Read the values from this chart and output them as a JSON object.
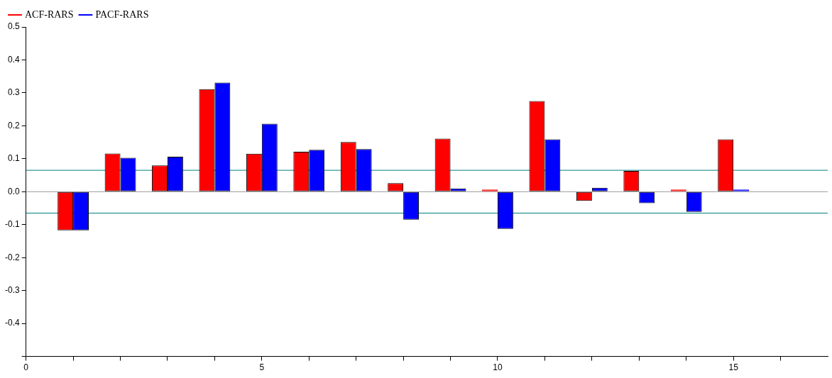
{
  "chart_data": {
    "type": "bar",
    "x": [
      1,
      2,
      3,
      4,
      5,
      6,
      7,
      8,
      9,
      10,
      11,
      12,
      13,
      14,
      15
    ],
    "series": [
      {
        "name": "ACF-RARS",
        "color": "#ff0000",
        "values": [
          -0.117,
          0.116,
          0.08,
          0.311,
          0.115,
          0.121,
          0.151,
          0.026,
          0.161,
          0.001,
          0.275,
          -0.028,
          0.063,
          0.005,
          0.159
        ]
      },
      {
        "name": "PACF-RARS",
        "color": "#0000ff",
        "values": [
          -0.117,
          0.103,
          0.106,
          0.331,
          0.206,
          0.127,
          0.129,
          -0.085,
          0.01,
          -0.113,
          0.159,
          0.012,
          -0.035,
          -0.061,
          0.002
        ]
      }
    ],
    "xlim": [
      0,
      17
    ],
    "xticks": [
      0,
      {
        "value": 1,
        "label": null
      },
      {
        "value": 2,
        "label": null
      },
      {
        "value": 3,
        "label": null
      },
      {
        "value": 4,
        "label": null
      },
      5,
      {
        "value": 6,
        "label": null
      },
      {
        "value": 7,
        "label": null
      },
      {
        "value": 8,
        "label": null
      },
      {
        "value": 9,
        "label": null
      },
      10,
      {
        "value": 11,
        "label": null
      },
      {
        "value": 12,
        "label": null
      },
      {
        "value": 13,
        "label": null
      },
      {
        "value": 14,
        "label": null
      },
      15,
      {
        "value": 16,
        "label": null
      }
    ],
    "ylim": [
      -0.5,
      0.5
    ],
    "yticks": [
      {
        "value": -0.5,
        "label": null
      },
      {
        "value": -0.4,
        "label": "-0.4"
      },
      {
        "value": -0.3,
        "label": "-0.3"
      },
      {
        "value": -0.2,
        "label": "-0.2"
      },
      {
        "value": -0.1,
        "label": "-0.1"
      },
      {
        "value": 0,
        "label": "0.0"
      },
      0.1,
      0.2,
      0.3,
      0.4,
      0.5
    ],
    "ref_lines": [
      {
        "axis": "y",
        "value": 0.065,
        "color": "#008080"
      },
      {
        "axis": "y",
        "value": -0.065,
        "color": "#008080"
      },
      {
        "axis": "y",
        "value": 0,
        "color": "#999999"
      }
    ],
    "legend": "top left"
  }
}
